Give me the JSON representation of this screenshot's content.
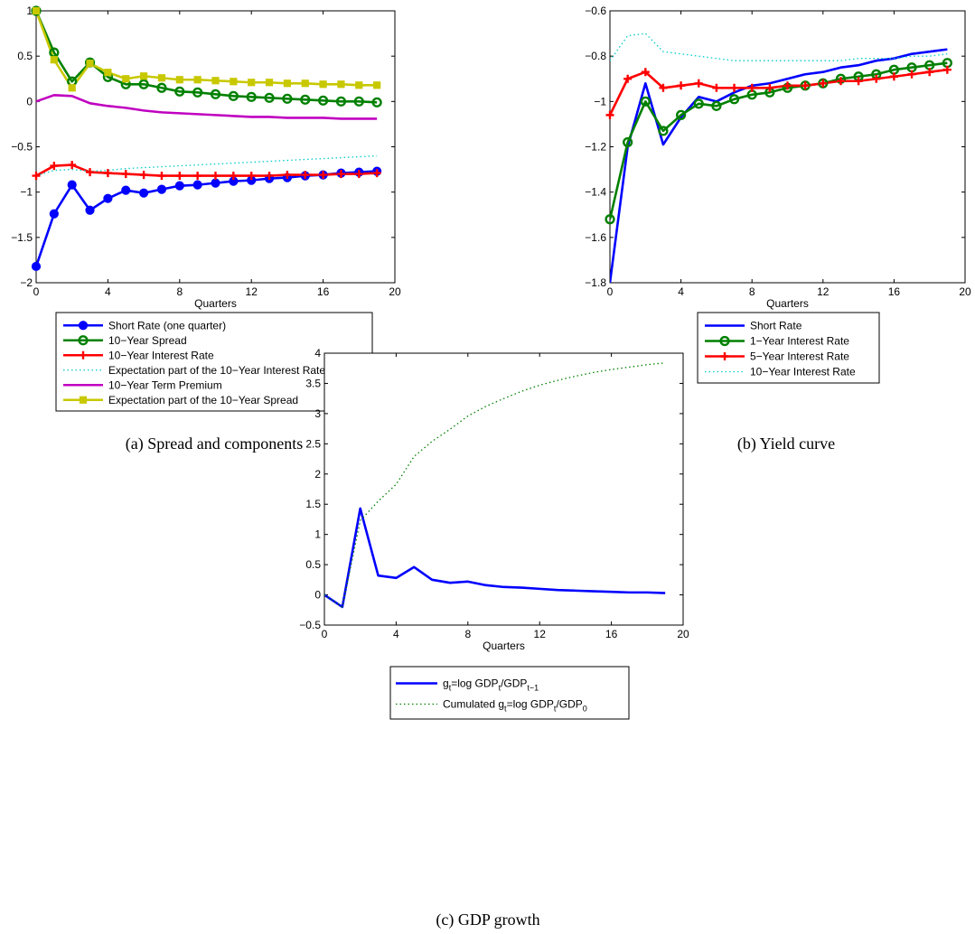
{
  "chart_data": [
    {
      "id": "a",
      "type": "line",
      "caption": "(a)  Spread and components",
      "xlabel": "Quarters",
      "xlim": [
        0,
        20
      ],
      "ylim": [
        -2,
        1
      ],
      "xticks": [
        0,
        4,
        8,
        12,
        16,
        20
      ],
      "yticks": [
        1,
        0.5,
        0,
        -0.5,
        -1,
        -1.5,
        -2
      ],
      "x": [
        0,
        1,
        2,
        3,
        4,
        5,
        6,
        7,
        8,
        9,
        10,
        11,
        12,
        13,
        14,
        15,
        16,
        17,
        18,
        19
      ],
      "series": [
        {
          "name": "Short Rate (one quarter)",
          "color": "#0000ff",
          "marker": "dot",
          "dash": "solid",
          "values": [
            -1.82,
            -1.24,
            -0.92,
            -1.2,
            -1.07,
            -0.98,
            -1.01,
            -0.97,
            -0.93,
            -0.92,
            -0.9,
            -0.88,
            -0.87,
            -0.85,
            -0.84,
            -0.82,
            -0.81,
            -0.79,
            -0.78,
            -0.77
          ]
        },
        {
          "name": "10−Year Spread",
          "color": "#008000",
          "marker": "circle",
          "dash": "solid",
          "values": [
            1.0,
            0.54,
            0.22,
            0.43,
            0.27,
            0.19,
            0.19,
            0.15,
            0.11,
            0.1,
            0.08,
            0.06,
            0.05,
            0.04,
            0.03,
            0.02,
            0.01,
            0.0,
            0.0,
            -0.01
          ]
        },
        {
          "name": "10−Year Interest Rate",
          "color": "#ff0000",
          "marker": "plus",
          "dash": "solid",
          "values": [
            -0.82,
            -0.71,
            -0.7,
            -0.78,
            -0.79,
            -0.8,
            -0.81,
            -0.82,
            -0.82,
            -0.82,
            -0.82,
            -0.82,
            -0.82,
            -0.82,
            -0.81,
            -0.81,
            -0.81,
            -0.8,
            -0.8,
            -0.79
          ]
        },
        {
          "name": "Expectation part of the 10−Year Interest Rate",
          "color": "#00cccc",
          "marker": "none",
          "dash": "dotted",
          "values": [
            -0.82,
            -0.76,
            -0.75,
            -0.77,
            -0.76,
            -0.74,
            -0.73,
            -0.72,
            -0.71,
            -0.7,
            -0.69,
            -0.68,
            -0.67,
            -0.66,
            -0.65,
            -0.64,
            -0.63,
            -0.62,
            -0.61,
            -0.6
          ]
        },
        {
          "name": "10−Year Term Premium",
          "color": "#c000c0",
          "marker": "none",
          "dash": "solid",
          "values": [
            0.0,
            0.07,
            0.06,
            -0.02,
            -0.05,
            -0.07,
            -0.1,
            -0.12,
            -0.13,
            -0.14,
            -0.15,
            -0.16,
            -0.17,
            -0.17,
            -0.18,
            -0.18,
            -0.18,
            -0.19,
            -0.19,
            -0.19
          ]
        },
        {
          "name": "Expectation part of the 10−Year Spread",
          "color": "#c8c800",
          "marker": "square",
          "dash": "solid",
          "values": [
            1.0,
            0.46,
            0.15,
            0.42,
            0.32,
            0.25,
            0.28,
            0.26,
            0.24,
            0.24,
            0.23,
            0.22,
            0.21,
            0.21,
            0.2,
            0.2,
            0.19,
            0.19,
            0.18,
            0.18
          ]
        }
      ]
    },
    {
      "id": "b",
      "type": "line",
      "caption": "(b)  Yield curve",
      "xlabel": "Quarters",
      "xlim": [
        0,
        20
      ],
      "ylim": [
        -1.8,
        -0.6
      ],
      "xticks": [
        0,
        4,
        8,
        12,
        16,
        20
      ],
      "yticks": [
        -0.6,
        -0.8,
        -1,
        -1.2,
        -1.4,
        -1.6,
        -1.8
      ],
      "x": [
        0,
        1,
        2,
        3,
        4,
        5,
        6,
        7,
        8,
        9,
        10,
        11,
        12,
        13,
        14,
        15,
        16,
        17,
        18,
        19
      ],
      "series": [
        {
          "name": "Short Rate",
          "color": "#0000ff",
          "marker": "none",
          "dash": "solid",
          "values": [
            -1.8,
            -1.2,
            -0.92,
            -1.19,
            -1.07,
            -0.98,
            -1.0,
            -0.96,
            -0.93,
            -0.92,
            -0.9,
            -0.88,
            -0.87,
            -0.85,
            -0.84,
            -0.82,
            -0.81,
            -0.79,
            -0.78,
            -0.77
          ]
        },
        {
          "name": "1−Year Interest Rate",
          "color": "#008000",
          "marker": "circle",
          "dash": "solid",
          "values": [
            -1.52,
            -1.18,
            -1.0,
            -1.13,
            -1.06,
            -1.01,
            -1.02,
            -0.99,
            -0.97,
            -0.96,
            -0.94,
            -0.93,
            -0.92,
            -0.9,
            -0.89,
            -0.88,
            -0.86,
            -0.85,
            -0.84,
            -0.83
          ]
        },
        {
          "name": "5−Year Interest Rate",
          "color": "#ff0000",
          "marker": "plus",
          "dash": "solid",
          "values": [
            -1.06,
            -0.9,
            -0.87,
            -0.94,
            -0.93,
            -0.92,
            -0.94,
            -0.94,
            -0.94,
            -0.94,
            -0.93,
            -0.93,
            -0.92,
            -0.91,
            -0.91,
            -0.9,
            -0.89,
            -0.88,
            -0.87,
            -0.86
          ]
        },
        {
          "name": "10−Year Interest Rate",
          "color": "#00cccc",
          "marker": "none",
          "dash": "dotted",
          "values": [
            -0.82,
            -0.71,
            -0.7,
            -0.78,
            -0.79,
            -0.8,
            -0.81,
            -0.82,
            -0.82,
            -0.82,
            -0.82,
            -0.82,
            -0.82,
            -0.82,
            -0.81,
            -0.81,
            -0.81,
            -0.8,
            -0.8,
            -0.79
          ]
        }
      ]
    },
    {
      "id": "c",
      "type": "line",
      "caption": "(c)  GDP growth",
      "xlabel": "Quarters",
      "xlim": [
        0,
        20
      ],
      "ylim": [
        -0.5,
        4
      ],
      "xticks": [
        0,
        4,
        8,
        12,
        16,
        20
      ],
      "yticks": [
        4,
        3.5,
        3,
        2.5,
        2,
        1.5,
        1,
        0.5,
        0,
        -0.5
      ],
      "x": [
        0,
        1,
        2,
        3,
        4,
        5,
        6,
        7,
        8,
        9,
        10,
        11,
        12,
        13,
        14,
        15,
        16,
        17,
        18,
        19
      ],
      "series": [
        {
          "name": "g_t=log GDP_t/GDP_t−1",
          "label_parts": [
            "g",
            "t",
            "=log GDP",
            "t",
            "/GDP",
            "t−1"
          ],
          "color": "#0000ff",
          "marker": "none",
          "dash": "solid",
          "values": [
            0.0,
            -0.2,
            1.43,
            0.32,
            0.28,
            0.46,
            0.25,
            0.2,
            0.22,
            0.16,
            0.13,
            0.12,
            0.1,
            0.08,
            0.07,
            0.06,
            0.05,
            0.04,
            0.04,
            0.03
          ]
        },
        {
          "name": "Cumulated g_t=log GDP_t/GDP_0",
          "label_parts": [
            "Cumulated g",
            "t",
            "=log GDP",
            "t",
            "/GDP",
            "0"
          ],
          "color": "#008000",
          "marker": "none",
          "dash": "dotted",
          "values": [
            0.0,
            -0.2,
            1.23,
            1.55,
            1.83,
            2.29,
            2.54,
            2.74,
            2.96,
            3.12,
            3.25,
            3.37,
            3.47,
            3.55,
            3.62,
            3.68,
            3.73,
            3.77,
            3.81,
            3.84
          ]
        }
      ]
    }
  ]
}
